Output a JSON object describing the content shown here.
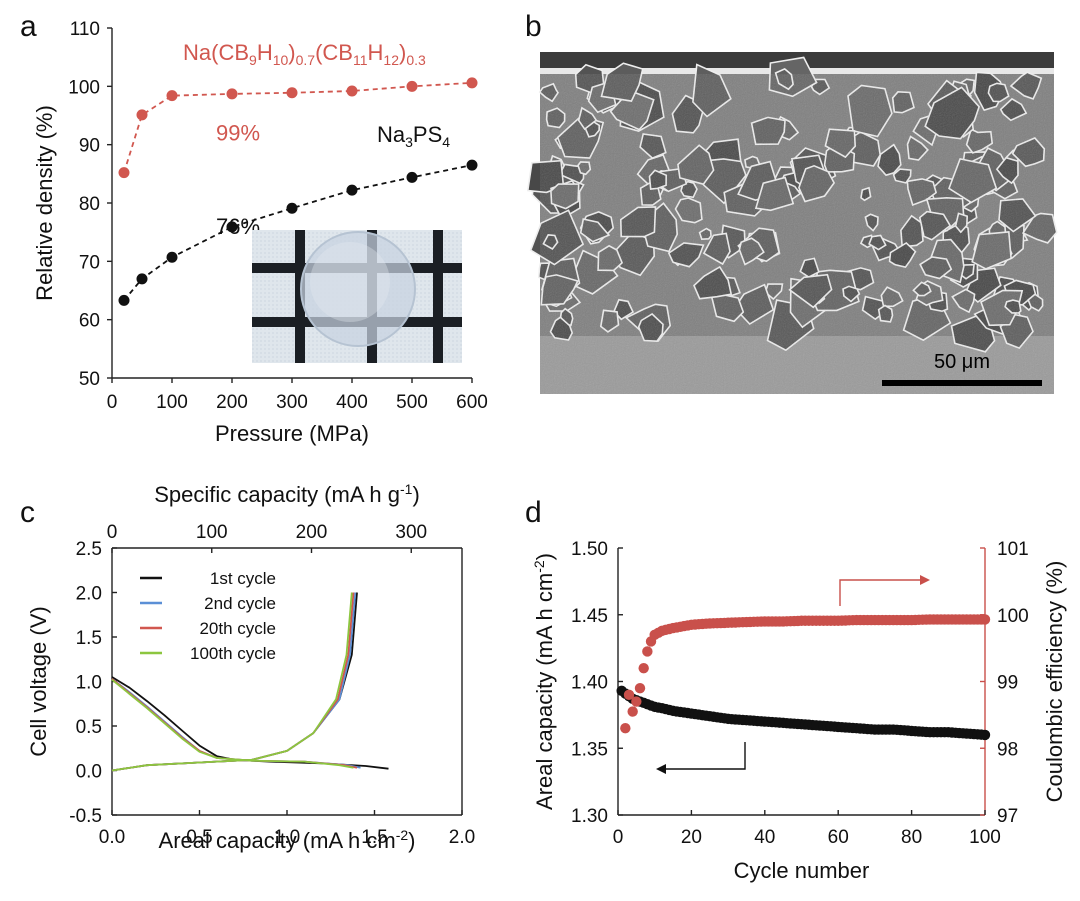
{
  "chart_data": [
    {
      "panel": "a",
      "type": "line",
      "xlabel": "Pressure (MPa)",
      "ylabel": "Relative density (%)",
      "xlim": [
        0,
        600
      ],
      "ylim": [
        50,
        110
      ],
      "xticks": [
        0,
        100,
        200,
        300,
        400,
        500,
        600
      ],
      "yticks": [
        50,
        60,
        70,
        80,
        90,
        100,
        110
      ],
      "x": [
        20,
        50,
        100,
        200,
        300,
        400,
        500,
        600
      ],
      "series": [
        {
          "name": "Na(CB9H10)0.7(CB11H12)0.3",
          "color": "#d1574f",
          "values": [
            85.2,
            95.1,
            98.4,
            98.7,
            98.9,
            99.2,
            100.0,
            100.6
          ]
        },
        {
          "name": "Na3PS4",
          "color": "#111111",
          "values": [
            63.3,
            67.0,
            70.7,
            75.9,
            79.1,
            82.2,
            84.4,
            86.5
          ]
        }
      ],
      "annotations": [
        {
          "text": "99%",
          "x": 210,
          "y": 95.5,
          "color": "#d1574f"
        },
        {
          "text": "76%",
          "x": 210,
          "y": 79.5,
          "color": "#111111"
        }
      ],
      "grid": false
    },
    {
      "panel": "c",
      "type": "line",
      "xlabel": "Areal capacity (mA h cm-2)",
      "x2label": "Specific capacity (mA h g-1)",
      "ylabel": "Cell voltage (V)",
      "xlim": [
        0,
        2.0
      ],
      "ylim": [
        -0.5,
        2.5
      ],
      "xticks": [
        "0.0",
        "0.5",
        "1.0",
        "1.5",
        "2.0"
      ],
      "x2ticks": [
        "0",
        "100",
        "200",
        "300"
      ],
      "yticks": [
        "-0.5",
        "0.0",
        "0.5",
        "1.0",
        "1.5",
        "2.0",
        "2.5"
      ],
      "legend_position": "top-left",
      "series": [
        {
          "name": "1st cycle",
          "color": "#111111",
          "discharge": [
            [
              0,
              1.05
            ],
            [
              0.1,
              0.93
            ],
            [
              0.2,
              0.78
            ],
            [
              0.3,
              0.62
            ],
            [
              0.4,
              0.45
            ],
            [
              0.5,
              0.28
            ],
            [
              0.6,
              0.16
            ],
            [
              0.7,
              0.12
            ],
            [
              0.9,
              0.1
            ],
            [
              1.2,
              0.08
            ],
            [
              1.45,
              0.05
            ],
            [
              1.58,
              0.02
            ]
          ],
          "charge": [
            [
              0,
              0.0
            ],
            [
              0.2,
              0.06
            ],
            [
              0.5,
              0.09
            ],
            [
              0.8,
              0.12
            ],
            [
              1.0,
              0.22
            ],
            [
              1.15,
              0.42
            ],
            [
              1.3,
              0.8
            ],
            [
              1.37,
              1.3
            ],
            [
              1.4,
              2.0
            ]
          ]
        },
        {
          "name": "2nd cycle",
          "color": "#5b8fd6",
          "discharge": [
            [
              0,
              1.03
            ],
            [
              0.1,
              0.88
            ],
            [
              0.2,
              0.72
            ],
            [
              0.3,
              0.55
            ],
            [
              0.4,
              0.38
            ],
            [
              0.5,
              0.22
            ],
            [
              0.6,
              0.14
            ],
            [
              0.8,
              0.11
            ],
            [
              1.1,
              0.1
            ],
            [
              1.35,
              0.06
            ],
            [
              1.42,
              0.03
            ]
          ],
          "charge": [
            [
              0,
              0.0
            ],
            [
              0.2,
              0.06
            ],
            [
              0.5,
              0.09
            ],
            [
              0.8,
              0.12
            ],
            [
              1.0,
              0.22
            ],
            [
              1.15,
              0.42
            ],
            [
              1.3,
              0.8
            ],
            [
              1.36,
              1.3
            ],
            [
              1.39,
              2.0
            ]
          ]
        },
        {
          "name": "20th cycle",
          "color": "#d1574f",
          "discharge": [
            [
              0,
              1.03
            ],
            [
              0.1,
              0.87
            ],
            [
              0.2,
              0.71
            ],
            [
              0.3,
              0.54
            ],
            [
              0.4,
              0.37
            ],
            [
              0.5,
              0.22
            ],
            [
              0.6,
              0.14
            ],
            [
              0.8,
              0.11
            ],
            [
              1.1,
              0.1
            ],
            [
              1.33,
              0.06
            ],
            [
              1.4,
              0.03
            ]
          ],
          "charge": [
            [
              0,
              0.0
            ],
            [
              0.2,
              0.06
            ],
            [
              0.5,
              0.09
            ],
            [
              0.8,
              0.12
            ],
            [
              1.0,
              0.22
            ],
            [
              1.15,
              0.42
            ],
            [
              1.29,
              0.8
            ],
            [
              1.35,
              1.3
            ],
            [
              1.38,
              2.0
            ]
          ]
        },
        {
          "name": "100th cycle",
          "color": "#8cc63f",
          "discharge": [
            [
              0,
              1.02
            ],
            [
              0.1,
              0.86
            ],
            [
              0.2,
              0.7
            ],
            [
              0.3,
              0.53
            ],
            [
              0.4,
              0.36
            ],
            [
              0.5,
              0.21
            ],
            [
              0.6,
              0.14
            ],
            [
              0.8,
              0.11
            ],
            [
              1.1,
              0.1
            ],
            [
              1.3,
              0.06
            ],
            [
              1.38,
              0.03
            ]
          ],
          "charge": [
            [
              0,
              0.0
            ],
            [
              0.2,
              0.06
            ],
            [
              0.5,
              0.09
            ],
            [
              0.8,
              0.12
            ],
            [
              1.0,
              0.22
            ],
            [
              1.15,
              0.42
            ],
            [
              1.28,
              0.8
            ],
            [
              1.34,
              1.3
            ],
            [
              1.37,
              2.0
            ]
          ]
        }
      ],
      "grid": false
    },
    {
      "panel": "d",
      "type": "scatter",
      "xlabel": "Cycle number",
      "ylabel": "Areal capacity (mA h cm-2)",
      "y2label": "Coulombic efficiency (%)",
      "xlim": [
        0,
        100
      ],
      "ylim": [
        1.3,
        1.5
      ],
      "y2lim": [
        97,
        101
      ],
      "xticks": [
        "0",
        "20",
        "40",
        "60",
        "80",
        "100"
      ],
      "yticks": [
        "1.30",
        "1.35",
        "1.40",
        "1.45",
        "1.50"
      ],
      "y2ticks": [
        "97",
        "98",
        "99",
        "100",
        "101"
      ],
      "series": [
        {
          "name": "Areal capacity",
          "axis": "left",
          "color": "#111111",
          "x": [
            1,
            2,
            3,
            4,
            5,
            6,
            7,
            8,
            10,
            12,
            15,
            20,
            25,
            30,
            35,
            40,
            45,
            50,
            55,
            60,
            65,
            70,
            75,
            80,
            85,
            90,
            95,
            100
          ],
          "values": [
            1.393,
            1.391,
            1.389,
            1.387,
            1.386,
            1.385,
            1.384,
            1.383,
            1.381,
            1.38,
            1.378,
            1.376,
            1.374,
            1.372,
            1.371,
            1.37,
            1.369,
            1.368,
            1.367,
            1.366,
            1.365,
            1.364,
            1.364,
            1.363,
            1.362,
            1.362,
            1.361,
            1.36
          ]
        },
        {
          "name": "Coulombic efficiency",
          "axis": "right",
          "color": "#c9504b",
          "x": [
            2,
            3,
            4,
            5,
            6,
            7,
            8,
            9,
            10,
            12,
            15,
            18,
            20,
            25,
            30,
            35,
            40,
            45,
            50,
            55,
            60,
            65,
            70,
            75,
            80,
            85,
            90,
            95,
            100
          ],
          "values": [
            98.3,
            98.8,
            98.55,
            98.7,
            98.9,
            99.2,
            99.45,
            99.6,
            99.7,
            99.76,
            99.8,
            99.83,
            99.85,
            99.87,
            99.88,
            99.89,
            99.9,
            99.9,
            99.91,
            99.91,
            99.91,
            99.92,
            99.92,
            99.92,
            99.92,
            99.93,
            99.93,
            99.93,
            99.93
          ]
        }
      ],
      "grid": false
    }
  ],
  "figure": {
    "panel_letters": [
      "a",
      "b",
      "c",
      "d"
    ],
    "panel_a": {
      "series_label_red": {
        "base": [
          "Na(CB",
          "H",
          ")",
          "(CB",
          "H",
          ")"
        ],
        "subs": [
          "9",
          "10",
          "0.7",
          "11",
          "12",
          "0.3"
        ]
      },
      "series_label_black": {
        "base": [
          "Na",
          "PS"
        ],
        "subs": [
          "3",
          "4"
        ]
      }
    },
    "panel_b": {
      "scale_bar_label": "50 μm",
      "scale_bar_um": 50
    },
    "panel_c": {
      "xlabel_main": "Areal capacity (mA h cm",
      "xlabel_sup": "-2",
      "x2label_main": "Specific capacity (mA h g",
      "x2label_sup": "-1"
    },
    "panel_d": {
      "ylabel_main": "Areal capacity (mA h cm",
      "ylabel_sup": "-2"
    },
    "colors": {
      "red": "#d1574f",
      "black": "#111111",
      "blue": "#5b8fd6",
      "green": "#8cc63f"
    }
  }
}
